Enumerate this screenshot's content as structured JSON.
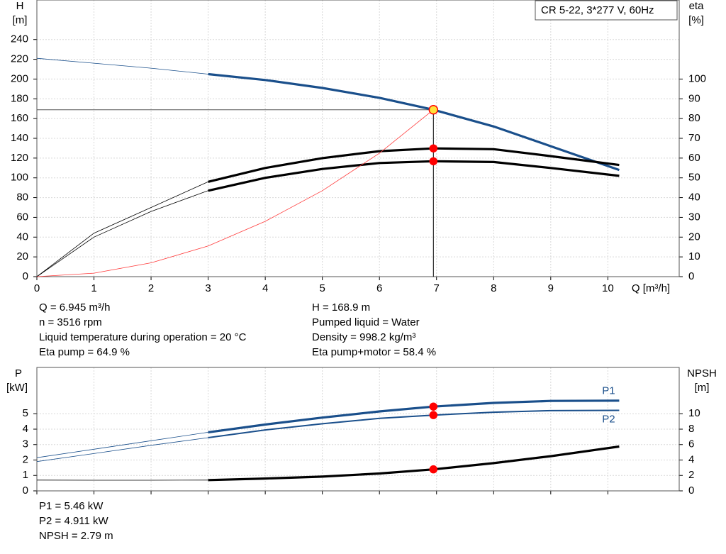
{
  "charts": [
    {
      "type": "line",
      "legend_box": "CR 5-22, 3*277 V, 60Hz",
      "y_label": "H",
      "y_unit": "[m]",
      "y2_label": "eta",
      "y2_unit": "[%]",
      "x_label": "Q [m³/h]",
      "xlim": [
        0,
        11.25
      ],
      "xticks": [
        0,
        1,
        2,
        3,
        4,
        5,
        6,
        7,
        8,
        9,
        10
      ],
      "ylim": [
        0,
        280
      ],
      "yticks": [
        0,
        20,
        40,
        60,
        80,
        100,
        120,
        140,
        160,
        180,
        200,
        220,
        240
      ],
      "y2lim": [
        0,
        140
      ],
      "y2ticks": [
        0,
        10,
        20,
        30,
        40,
        50,
        60,
        70,
        80,
        90,
        100
      ],
      "grid": true,
      "thick_from": 3,
      "duty_point": {
        "x": 6.945,
        "y": 168.9
      },
      "x": [
        0,
        1,
        2,
        3,
        4,
        5,
        6,
        6.945,
        8,
        9,
        10.2
      ],
      "series": [
        {
          "color": "#1a4f8b",
          "marker": "#ffe23a",
          "values": [
            221,
            216,
            211,
            205,
            199,
            191,
            181,
            168.9,
            152,
            132,
            108
          ]
        },
        {
          "color": "#000000",
          "marker": "#ff0000",
          "axis": "y2",
          "values": [
            0,
            22,
            35,
            48,
            55,
            60,
            63.5,
            64.9,
            64.5,
            61,
            56.5
          ]
        },
        {
          "color": "#000000",
          "marker": "#ff0000",
          "axis": "y2",
          "values": [
            0,
            20,
            33,
            43.5,
            50,
            54.5,
            57.5,
            58.4,
            58,
            55,
            51
          ]
        },
        {
          "color": "#ff3b3b",
          "thick": false,
          "x": [
            0,
            1,
            2,
            3,
            4,
            5,
            6,
            6.945
          ],
          "values": [
            0,
            3.5,
            14,
            31,
            56,
            87,
            125,
            168.9
          ]
        }
      ]
    },
    {
      "type": "line",
      "y_label": "P",
      "y_unit": "[kW]",
      "y2_label": "NPSH",
      "y2_unit": "[m]",
      "xlim": [
        0,
        11.25
      ],
      "xticks": [
        0,
        1,
        2,
        3,
        4,
        5,
        6,
        7,
        8,
        9,
        10
      ],
      "ylim": [
        0,
        8
      ],
      "yticks": [
        0,
        1,
        2,
        3,
        4,
        5
      ],
      "y2lim": [
        0,
        16
      ],
      "y2ticks": [
        0,
        2,
        4,
        6,
        8,
        10
      ],
      "grid": true,
      "thick_from": 3,
      "duty_point": {
        "x": 6.945
      },
      "x": [
        0,
        1,
        2,
        3,
        4,
        5,
        6,
        6.945,
        8,
        9,
        10.2
      ],
      "series": [
        {
          "name": "P1",
          "color": "#1a4f8b",
          "marker": "#ff0000",
          "values": [
            2.15,
            2.7,
            3.25,
            3.8,
            4.3,
            4.75,
            5.15,
            5.46,
            5.7,
            5.83,
            5.85
          ]
        },
        {
          "name": "P2",
          "color": "#1a4f8b",
          "marker": "#ff0000",
          "thin_main": true,
          "values": [
            1.9,
            2.42,
            2.95,
            3.45,
            3.95,
            4.35,
            4.7,
            4.911,
            5.1,
            5.2,
            5.22
          ]
        },
        {
          "color": "#000000",
          "marker": "#ff0000",
          "axis": "y2",
          "values": [
            1.4,
            1.38,
            1.38,
            1.4,
            1.6,
            1.85,
            2.25,
            2.79,
            3.6,
            4.5,
            5.75
          ]
        }
      ]
    }
  ],
  "info_top": {
    "left": [
      "Q = 6.945 m³/h",
      "n = 3516 rpm",
      "Liquid temperature during operation = 20 °C",
      "Eta pump = 64.9 %"
    ],
    "right": [
      "H = 168.9 m",
      "Pumped liquid = Water",
      "Density = 998.2 kg/m³",
      "Eta pump+motor = 58.4 %"
    ]
  },
  "info_bottom": [
    "P1 = 5.46 kW",
    "P2 = 4.911 kW",
    "NPSH = 2.79 m"
  ]
}
